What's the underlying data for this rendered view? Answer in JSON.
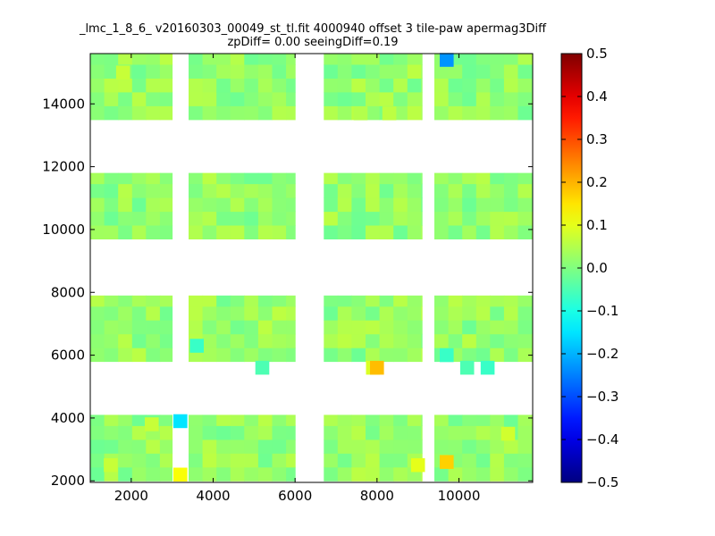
{
  "chart_data": {
    "type": "heatmap",
    "title_lines": [
      "_lmc_1_8_6_ v20160303_00049_st_tl.fit 4000940 offset 3 tile-paw apermag3Diff",
      "zpDiff= 0.00 seeingDiff=0.19"
    ],
    "xlabel": "",
    "ylabel": "",
    "xlim": [
      1000,
      11800
    ],
    "ylim": [
      1950,
      15600
    ],
    "x_ticks": [
      2000,
      4000,
      6000,
      8000,
      10000
    ],
    "y_ticks": [
      2000,
      4000,
      6000,
      8000,
      10000,
      12000,
      14000
    ],
    "colorbar": {
      "vmin": -0.5,
      "vmax": 0.5,
      "colormap": "jet",
      "ticks": [
        -0.5,
        -0.4,
        -0.3,
        -0.2,
        -0.1,
        0.0,
        0.1,
        0.2,
        0.3,
        0.4,
        0.5
      ],
      "tick_labels": [
        "−0.5",
        "−0.4",
        "−0.3",
        "−0.2",
        "−0.1",
        "0.0",
        "0.1",
        "0.2",
        "0.3",
        "0.4",
        "0.5"
      ]
    },
    "cell_size": [
      340,
      440
    ],
    "panel_columns": [
      {
        "x0": 1000,
        "x1": 3000
      },
      {
        "x0": 3400,
        "x1": 6000
      },
      {
        "x0": 6700,
        "x1": 9100
      },
      {
        "x0": 9400,
        "x1": 11800
      }
    ],
    "panel_rows": [
      {
        "y0": 2000,
        "y1": 4100
      },
      {
        "y0": 5800,
        "y1": 7900
      },
      {
        "y0": 9700,
        "y1": 11800
      },
      {
        "y0": 13500,
        "y1": 15600
      }
    ],
    "typical_value": 0.02,
    "notable_cells": [
      {
        "x": 3200,
        "y": 3900,
        "value": -0.15
      },
      {
        "x": 3200,
        "y": 2200,
        "value": 0.12
      },
      {
        "x": 9700,
        "y": 2600,
        "value": 0.17
      },
      {
        "x": 9700,
        "y": 15400,
        "value": -0.23
      },
      {
        "x": 9700,
        "y": 6000,
        "value": -0.07
      },
      {
        "x": 3600,
        "y": 6300,
        "value": -0.07
      },
      {
        "x": 7900,
        "y": 5600,
        "value": 0.09
      },
      {
        "x": 8000,
        "y": 5600,
        "value": 0.19
      },
      {
        "x": 10200,
        "y": 5600,
        "value": -0.05
      },
      {
        "x": 10700,
        "y": 5600,
        "value": -0.07
      },
      {
        "x": 5200,
        "y": 5600,
        "value": -0.05
      },
      {
        "x": 1500,
        "y": 2500,
        "value": 0.07
      },
      {
        "x": 2500,
        "y": 3800,
        "value": 0.07
      },
      {
        "x": 9000,
        "y": 2500,
        "value": 0.1
      },
      {
        "x": 11200,
        "y": 3500,
        "value": 0.08
      },
      {
        "x": 1800,
        "y": 15000,
        "value": 0.07
      },
      {
        "x": 7600,
        "y": 13700,
        "value": 0.05
      },
      {
        "x": 8300,
        "y": 13700,
        "value": 0.06
      }
    ]
  }
}
